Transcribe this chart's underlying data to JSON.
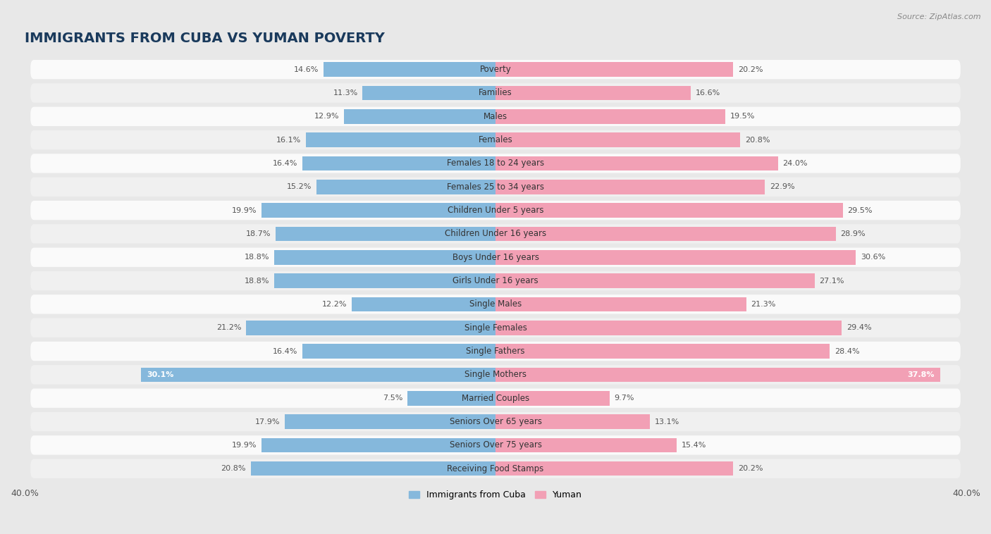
{
  "title": "IMMIGRANTS FROM CUBA VS YUMAN POVERTY",
  "source": "Source: ZipAtlas.com",
  "categories": [
    "Poverty",
    "Families",
    "Males",
    "Females",
    "Females 18 to 24 years",
    "Females 25 to 34 years",
    "Children Under 5 years",
    "Children Under 16 years",
    "Boys Under 16 years",
    "Girls Under 16 years",
    "Single Males",
    "Single Females",
    "Single Fathers",
    "Single Mothers",
    "Married Couples",
    "Seniors Over 65 years",
    "Seniors Over 75 years",
    "Receiving Food Stamps"
  ],
  "cuba_values": [
    14.6,
    11.3,
    12.9,
    16.1,
    16.4,
    15.2,
    19.9,
    18.7,
    18.8,
    18.8,
    12.2,
    21.2,
    16.4,
    30.1,
    7.5,
    17.9,
    19.9,
    20.8
  ],
  "yuman_values": [
    20.2,
    16.6,
    19.5,
    20.8,
    24.0,
    22.9,
    29.5,
    28.9,
    30.6,
    27.1,
    21.3,
    29.4,
    28.4,
    37.8,
    9.7,
    13.1,
    15.4,
    20.2
  ],
  "cuba_color": "#85b8dc",
  "yuman_color": "#f2a0b5",
  "bg_color": "#e8e8e8",
  "row_color_odd": "#f0f0f0",
  "row_color_even": "#fafafa",
  "axis_max": 40.0,
  "bar_height": 0.62,
  "title_fontsize": 14,
  "label_fontsize": 8.5,
  "value_fontsize": 8.0,
  "legend_fontsize": 9
}
